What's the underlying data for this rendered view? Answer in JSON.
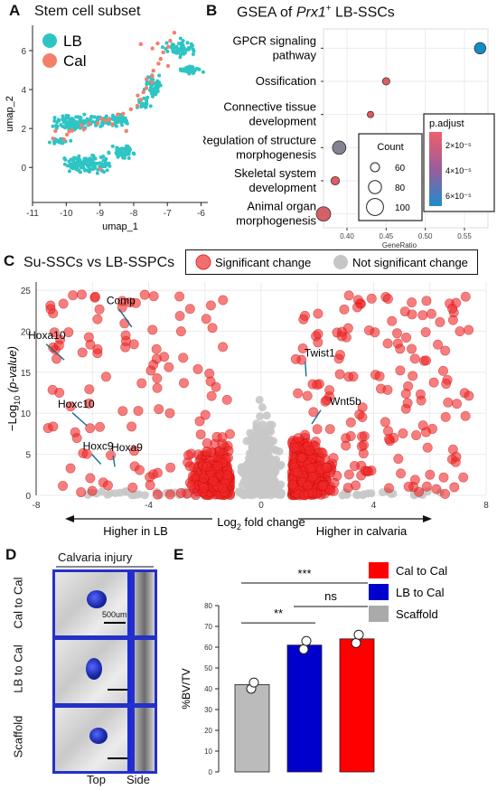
{
  "panels": {
    "A": {
      "letter": "A",
      "title": "Stem cell subset",
      "legend": [
        {
          "label": "LB",
          "color": "#2ec4c4"
        },
        {
          "label": "Cal",
          "color": "#f47f6a"
        }
      ],
      "xlabel": "umap_1",
      "ylabel": "umap_2",
      "xticks": [
        "-11",
        "-10",
        "-9",
        "-8",
        "-7",
        "-6"
      ],
      "yticks": [
        "6",
        "4",
        "2",
        "0"
      ]
    },
    "B": {
      "letter": "B",
      "title_pre": "GSEA of ",
      "title_italic": "Prx1",
      "title_sup": "+",
      "title_post": " LB-SSCs",
      "terms": [
        "GPCR signaling|pathway",
        "Ossification",
        "Connective tissue|development",
        "Regulation of structure|morphogenesis",
        "Skeletal system|development",
        "Animal organ|morphogenesis"
      ],
      "xlabel": "GeneRatio",
      "xticks": [
        "0.40",
        "0.45",
        "0.50",
        "0.55"
      ],
      "count_legend_title": "Count",
      "count_levels": [
        "60",
        "80",
        "100"
      ],
      "padj_title": "p.adjust",
      "padj_ticks": [
        "2×10⁻⁵",
        "4×10⁻⁵",
        "6×10⁻⁵"
      ]
    },
    "C": {
      "letter": "C",
      "title": "Su-SSCs vs LB-SSPCs",
      "legend_sig": "Significant change",
      "legend_nonsig": "Not significant change",
      "ylabel_pre": "−Log",
      "ylabel_sub": "10",
      "ylabel_post": " (p-value)",
      "xlabel_pre": "Log",
      "xlabel_sub": "2",
      "xlabel_post": " fold change",
      "xticks": [
        "-8",
        "-4",
        "0",
        "4",
        "8"
      ],
      "yticks": [
        "0",
        "5",
        "10",
        "15",
        "20",
        "25"
      ],
      "left_arrow": "Higher in LB",
      "right_arrow": "Higher in calvaria",
      "genes": [
        "Comp",
        "Hoxa10",
        "Twist1",
        "Hoxc10",
        "Wnt5b",
        "Hoxc9",
        "Hoxa9"
      ]
    },
    "D": {
      "letter": "D",
      "header": "Calvaria injury",
      "rows": [
        "Cal to Cal",
        "LB to Cal",
        "Scaffold"
      ],
      "scale": "500um",
      "foot_top": "Top",
      "foot_side": "Side"
    },
    "E": {
      "letter": "E",
      "ylabel": "%BV/TV",
      "yticks": [
        "0",
        "10",
        "20",
        "30",
        "40",
        "50",
        "60",
        "70",
        "80"
      ],
      "sig_labels": [
        "***",
        "ns",
        "**"
      ],
      "legend": [
        {
          "label": "Cal to Cal",
          "color": "#ff0000"
        },
        {
          "label": "LB to Cal",
          "color": "#0000cc"
        },
        {
          "label": "Scaffold",
          "color": "#aaaaaa"
        }
      ]
    }
  },
  "chart_data": [
    {
      "type": "scatter",
      "title": "Stem cell subset",
      "xlabel": "umap_1",
      "ylabel": "umap_2",
      "xlim": [
        -11,
        -5.8
      ],
      "ylim": [
        -1.8,
        7.3
      ],
      "series": [
        {
          "name": "LB"
        },
        {
          "name": "Cal"
        }
      ]
    },
    {
      "type": "scatter",
      "title": "GSEA of Prx1+ LB-SSCs",
      "xlabel": "GeneRatio",
      "xlim": [
        0.37,
        0.58
      ],
      "categories": [
        "GPCR signaling pathway",
        "Ossification",
        "Connective tissue development",
        "Regulation of structure morphogenesis",
        "Skeletal system development",
        "Animal organ morphogenesis"
      ],
      "x": [
        0.57,
        0.45,
        0.43,
        0.39,
        0.385,
        0.37
      ],
      "count": [
        80,
        60,
        55,
        90,
        65,
        95
      ],
      "p_adjust": [
        6.2e-05,
        1.5e-05,
        1.2e-05,
        3.5e-05,
        1.3e-05,
        1.6e-05
      ]
    },
    {
      "type": "scatter",
      "title": "Su-SSCs vs LB-SSPCs",
      "xlabel": "Log2 fold change",
      "ylabel": "-Log10 (p-value)",
      "xlim": [
        -8,
        8
      ],
      "ylim": [
        0,
        26
      ],
      "labeled_points": [
        {
          "name": "Comp",
          "x": -4.6,
          "y": 20.5
        },
        {
          "name": "Hoxa10",
          "x": -7.0,
          "y": 16.5
        },
        {
          "name": "Twist1",
          "x": 1.6,
          "y": 14.5
        },
        {
          "name": "Hoxc10",
          "x": -6.2,
          "y": 8.5
        },
        {
          "name": "Wnt5b",
          "x": 1.8,
          "y": 8.7
        },
        {
          "name": "Hoxc9",
          "x": -5.7,
          "y": 3.8
        },
        {
          "name": "Hoxa9",
          "x": -5.2,
          "y": 3.5
        }
      ]
    },
    {
      "type": "bar",
      "ylabel": "%BV/TV",
      "ylim": [
        0,
        80
      ],
      "categories": [
        "Scaffold",
        "LB to Cal",
        "Cal to Cal"
      ],
      "values": [
        42,
        61,
        64
      ],
      "points": [
        [
          40,
          43
        ],
        [
          59,
          63
        ],
        [
          62,
          66
        ]
      ],
      "colors": [
        "#bbbbbb",
        "#0000cc",
        "#ff0000"
      ]
    }
  ]
}
